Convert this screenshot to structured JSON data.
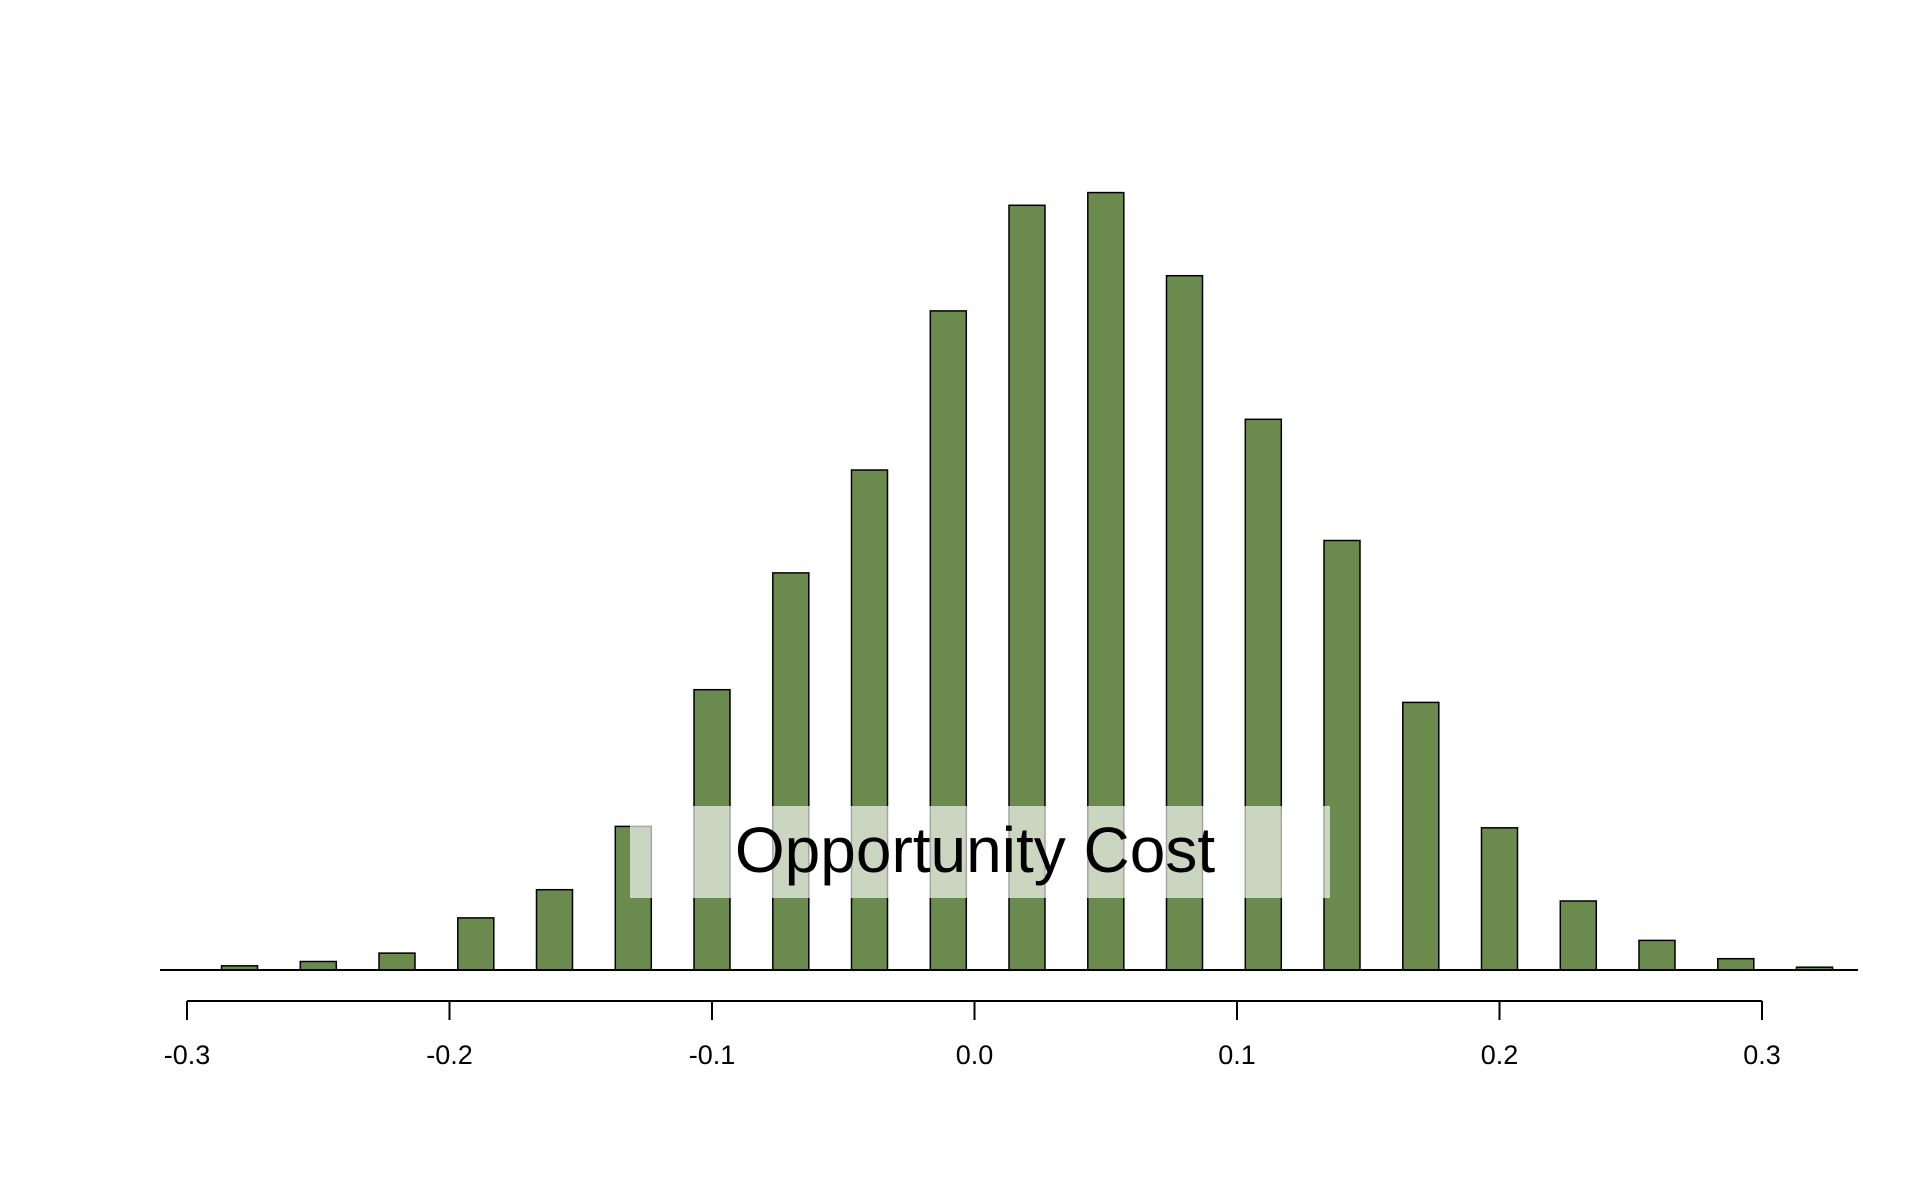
{
  "chart_data": {
    "type": "bar",
    "x": [
      -0.28,
      -0.25,
      -0.22,
      -0.19,
      -0.16,
      -0.13,
      -0.1,
      -0.07,
      -0.04,
      -0.01,
      0.02,
      0.05,
      0.08,
      0.11,
      0.14,
      0.17,
      0.2,
      0.23,
      0.26,
      0.29,
      0.32
    ],
    "values": [
      0.3,
      0.6,
      1.2,
      3.7,
      5.7,
      10.2,
      19.9,
      28.2,
      35.5,
      46.8,
      54.3,
      55.2,
      49.3,
      39.1,
      30.5,
      19.0,
      10.1,
      4.9,
      2.1,
      0.8,
      0.2
    ],
    "xlim": [
      -0.3,
      0.3
    ],
    "xticks": [
      "-0.3",
      "-0.2",
      "-0.1",
      "0.0",
      "0.1",
      "0.2",
      "0.3"
    ],
    "xtick_values": [
      -0.3,
      -0.2,
      -0.1,
      0.0,
      0.1,
      0.2,
      0.3
    ],
    "ylim": [
      0,
      60
    ],
    "grid": false,
    "bar_color": "#6b8a4e",
    "annotation": "Opportunity Cost",
    "title": "",
    "xlabel": "",
    "ylabel": ""
  }
}
